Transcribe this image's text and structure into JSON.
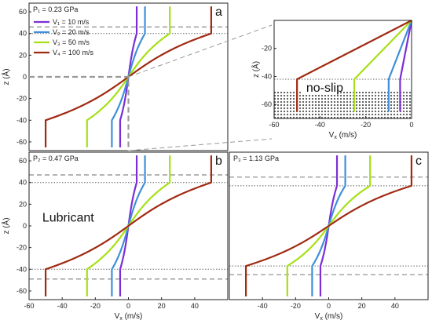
{
  "chart_data": [
    {
      "type": "line",
      "panel_letter": "a",
      "pressure_label": "P₁ = 0.23 GPa",
      "xlabel": "",
      "ylabel": "z (Å)",
      "xlim": [
        -60,
        60
      ],
      "ylim": [
        -68,
        68
      ],
      "xticks": [],
      "yticks": [
        -60,
        -40,
        -20,
        0,
        20,
        40,
        60
      ],
      "dashed_y": [
        46
      ],
      "dotted_y": [
        40
      ],
      "series": [
        {
          "name": "V₁ = 10 m/s",
          "color": "#7a2fd6",
          "wall_v": 5,
          "wall_z": 40,
          "x": [
            -5,
            -5,
            5,
            5
          ],
          "y": [
            -65,
            -40,
            40,
            65
          ]
        },
        {
          "name": "V₂ = 20 m/s",
          "color": "#3f8fdb",
          "wall_v": 10,
          "wall_z": 40,
          "x": [
            -10,
            -10,
            10,
            10
          ],
          "y": [
            -65,
            -40,
            40,
            65
          ]
        },
        {
          "name": "V₃ = 50 m/s",
          "color": "#a6e016",
          "wall_v": 25,
          "wall_z": 40,
          "x": [
            -25,
            -25,
            25,
            25
          ],
          "y": [
            -65,
            -40,
            40,
            65
          ]
        },
        {
          "name": "V₄ = 100 m/s",
          "color": "#a02a12",
          "wall_v": 50,
          "wall_z": 40,
          "x": [
            -50,
            -50,
            50,
            50
          ],
          "y": [
            -65,
            -40,
            40,
            65
          ]
        }
      ]
    },
    {
      "type": "line",
      "panel_letter": "",
      "annotation": "no-slip",
      "xlabel": "Vx (m/s)",
      "ylabel": "z (Å)",
      "xlim": [
        -60,
        0
      ],
      "ylim": [
        -70,
        0
      ],
      "xticks": [
        -60,
        -40,
        -20,
        0
      ],
      "yticks": [
        -60,
        -40,
        -20
      ],
      "dotted_y": [
        -42
      ],
      "hatched_below": -50,
      "series": [
        {
          "color": "#7a2fd6",
          "x": [
            0,
            -5,
            -5
          ],
          "y": [
            0,
            -42,
            -65
          ]
        },
        {
          "color": "#3f8fdb",
          "x": [
            0,
            -10,
            -10
          ],
          "y": [
            0,
            -42,
            -65
          ]
        },
        {
          "color": "#a6e016",
          "x": [
            0,
            -25,
            -25
          ],
          "y": [
            0,
            -42,
            -65
          ]
        },
        {
          "color": "#a02a12",
          "x": [
            0,
            -50,
            -50
          ],
          "y": [
            0,
            -42,
            -65
          ]
        }
      ]
    },
    {
      "type": "line",
      "panel_letter": "b",
      "pressure_label": "P₂ = 0.47 GPa",
      "annotation": "Lubricant",
      "xlabel": "Vx (m/s)",
      "ylabel": "z (Å)",
      "xlim": [
        -60,
        60
      ],
      "ylim": [
        -68,
        68
      ],
      "xticks": [
        -60,
        -40,
        -20,
        0,
        20,
        40
      ],
      "yticks": [
        -60,
        -40,
        -20,
        0,
        20,
        40,
        60
      ],
      "dashed_y": [
        47,
        -49
      ],
      "dotted_y": [
        40,
        -40
      ],
      "series": [
        {
          "color": "#7a2fd6",
          "wall_v": 5,
          "wall_z": 40,
          "x": [
            -5,
            -5,
            5,
            5
          ],
          "y": [
            -65,
            -40,
            40,
            65
          ]
        },
        {
          "color": "#3f8fdb",
          "wall_v": 10,
          "wall_z": 40,
          "x": [
            -10,
            -10,
            10,
            10
          ],
          "y": [
            -65,
            -40,
            40,
            65
          ]
        },
        {
          "color": "#a6e016",
          "wall_v": 25,
          "wall_z": 40,
          "x": [
            -25,
            -25,
            25,
            25
          ],
          "y": [
            -65,
            -40,
            40,
            65
          ]
        },
        {
          "color": "#a02a12",
          "wall_v": 50,
          "wall_z": 40,
          "x": [
            -50,
            -50,
            50,
            50
          ],
          "y": [
            -65,
            -40,
            40,
            65
          ]
        }
      ]
    },
    {
      "type": "line",
      "panel_letter": "c",
      "pressure_label": "P₃ = 1.13 GPa",
      "xlabel": "Vx (m/s)",
      "ylabel": "",
      "xlim": [
        -60,
        60
      ],
      "ylim": [
        -68,
        68
      ],
      "xticks": [
        -40,
        -20,
        0,
        20,
        40
      ],
      "yticks": [],
      "dashed_y": [
        45,
        -45
      ],
      "dotted_y": [
        37,
        -37
      ],
      "series": [
        {
          "color": "#7a2fd6",
          "wall_v": 5,
          "wall_z": 37,
          "x": [
            -5,
            -5,
            5,
            5
          ],
          "y": [
            -65,
            -37,
            37,
            65
          ]
        },
        {
          "color": "#3f8fdb",
          "wall_v": 10,
          "wall_z": 37,
          "x": [
            -10,
            -10,
            10,
            10
          ],
          "y": [
            -65,
            -37,
            37,
            65
          ]
        },
        {
          "color": "#a6e016",
          "wall_v": 25,
          "wall_z": 37,
          "x": [
            -25,
            -25,
            25,
            25
          ],
          "y": [
            -65,
            -37,
            37,
            65
          ]
        },
        {
          "color": "#a02a12",
          "wall_v": 50,
          "wall_z": 37,
          "x": [
            -50,
            -50,
            50,
            50
          ],
          "y": [
            -65,
            -37,
            37,
            65
          ]
        }
      ]
    }
  ]
}
